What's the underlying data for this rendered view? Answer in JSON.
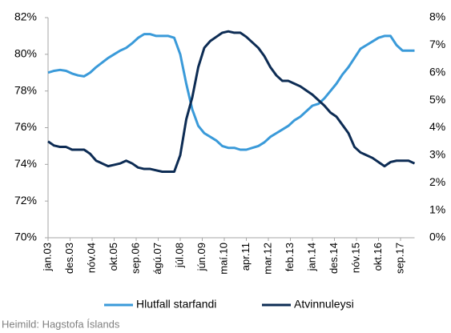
{
  "chart_data": {
    "type": "line",
    "x": [
      2003,
      2003.25,
      2003.5,
      2003.75,
      2004,
      2004.25,
      2004.5,
      2004.75,
      2005,
      2005.25,
      2005.5,
      2005.75,
      2006,
      2006.25,
      2006.5,
      2006.75,
      2007,
      2007.25,
      2007.5,
      2007.75,
      2008,
      2008.25,
      2008.5,
      2008.75,
      2009,
      2009.25,
      2009.5,
      2009.75,
      2010,
      2010.25,
      2010.5,
      2010.75,
      2011,
      2011.25,
      2011.5,
      2011.75,
      2012,
      2012.25,
      2012.5,
      2012.75,
      2013,
      2013.25,
      2013.5,
      2013.75,
      2014,
      2014.25,
      2014.5,
      2014.75,
      2015,
      2015.25,
      2015.5,
      2015.75,
      2016,
      2016.25,
      2016.5,
      2016.75,
      2017,
      2017.25,
      2017.5,
      2017.75,
      2018,
      2018.25
    ],
    "series": [
      {
        "name": "Hlutfall starfandi",
        "color": "#3a9ad9",
        "axis": "y",
        "values": [
          79.0,
          79.1,
          79.15,
          79.1,
          78.95,
          78.85,
          78.8,
          79.0,
          79.3,
          79.55,
          79.8,
          80.0,
          80.2,
          80.35,
          80.6,
          80.9,
          81.1,
          81.1,
          81.0,
          81.0,
          81.0,
          80.9,
          80.0,
          78.4,
          77.0,
          76.1,
          75.7,
          75.5,
          75.3,
          75.0,
          74.9,
          74.9,
          74.8,
          74.8,
          74.9,
          75.0,
          75.2,
          75.5,
          75.7,
          75.9,
          76.1,
          76.4,
          76.6,
          76.9,
          77.2,
          77.3,
          77.6,
          78.0,
          78.4,
          78.9,
          79.3,
          79.8,
          80.3,
          80.5,
          80.7,
          80.9,
          81.0,
          81.0,
          80.5,
          80.2,
          80.2,
          80.2
        ]
      },
      {
        "name": "Atvinnuleysi",
        "color": "#0d2c54",
        "axis": "y2",
        "values": [
          3.5,
          3.35,
          3.3,
          3.3,
          3.2,
          3.2,
          3.2,
          3.05,
          2.8,
          2.7,
          2.6,
          2.65,
          2.7,
          2.8,
          2.7,
          2.55,
          2.5,
          2.5,
          2.45,
          2.4,
          2.4,
          2.4,
          3.0,
          4.3,
          5.1,
          6.2,
          6.9,
          7.15,
          7.3,
          7.45,
          7.5,
          7.45,
          7.45,
          7.3,
          7.1,
          6.9,
          6.6,
          6.2,
          5.9,
          5.7,
          5.7,
          5.6,
          5.5,
          5.35,
          5.2,
          5.0,
          4.8,
          4.55,
          4.4,
          4.1,
          3.8,
          3.3,
          3.1,
          3.0,
          2.9,
          2.75,
          2.6,
          2.75,
          2.8,
          2.8,
          2.8,
          2.7
        ]
      }
    ],
    "xlim": [
      2003,
      2018.25
    ],
    "xticks": [
      {
        "value": 2003,
        "label": "jan.03"
      },
      {
        "value": 2003.917,
        "label": "des.03"
      },
      {
        "value": 2004.833,
        "label": "nóv.04"
      },
      {
        "value": 2005.75,
        "label": "okt.05"
      },
      {
        "value": 2006.667,
        "label": "sep.06"
      },
      {
        "value": 2007.583,
        "label": "ágú.07"
      },
      {
        "value": 2008.5,
        "label": "júl.08"
      },
      {
        "value": 2009.417,
        "label": "jún.09"
      },
      {
        "value": 2010.333,
        "label": "maí.10"
      },
      {
        "value": 2011.25,
        "label": "apr.11"
      },
      {
        "value": 2012.167,
        "label": "mar.12"
      },
      {
        "value": 2013.083,
        "label": "feb.13"
      },
      {
        "value": 2014,
        "label": "jan.14"
      },
      {
        "value": 2014.917,
        "label": "des.14"
      },
      {
        "value": 2015.833,
        "label": "nóv.15"
      },
      {
        "value": 2016.75,
        "label": "okt.16"
      },
      {
        "value": 2017.667,
        "label": "sep.17"
      }
    ],
    "ylim": [
      70,
      82
    ],
    "yticks": [
      {
        "value": 70,
        "label": "70%"
      },
      {
        "value": 72,
        "label": "72%"
      },
      {
        "value": 74,
        "label": "74%"
      },
      {
        "value": 76,
        "label": "76%"
      },
      {
        "value": 78,
        "label": "78%"
      },
      {
        "value": 80,
        "label": "80%"
      },
      {
        "value": 82,
        "label": "82%"
      }
    ],
    "y2lim": [
      0,
      8
    ],
    "y2ticks": [
      {
        "value": 0,
        "label": "0%"
      },
      {
        "value": 1,
        "label": "1%"
      },
      {
        "value": 2,
        "label": "2%"
      },
      {
        "value": 3,
        "label": "3%"
      },
      {
        "value": 4,
        "label": "4%"
      },
      {
        "value": 5,
        "label": "5%"
      },
      {
        "value": 6,
        "label": "6%"
      },
      {
        "value": 7,
        "label": "7%"
      },
      {
        "value": 8,
        "label": "8%"
      }
    ],
    "grid": false,
    "legend": "bottom",
    "source": "Heimild: Hagstofa Íslands"
  }
}
